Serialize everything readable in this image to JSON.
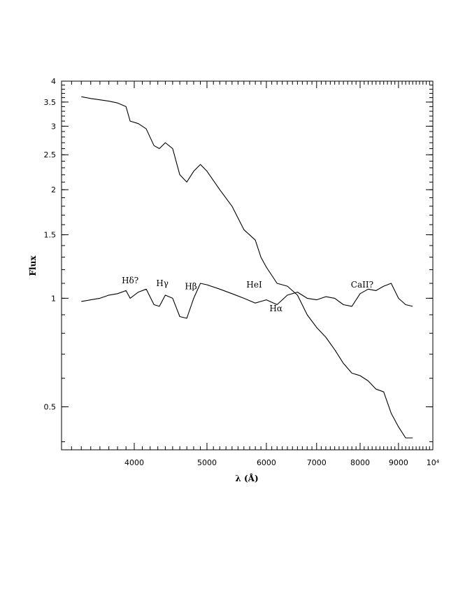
{
  "chart_data": {
    "type": "line",
    "xlabel": "λ (Å)",
    "ylabel": "Flux",
    "x_scale": "log",
    "y_scale": "log",
    "xlim": [
      3200,
      10000
    ],
    "ylim": [
      0.38,
      4.0
    ],
    "x_ticks": [
      {
        "value": 4000,
        "label": "4000"
      },
      {
        "value": 5000,
        "label": "5000"
      },
      {
        "value": 6000,
        "label": "6000"
      },
      {
        "value": 7000,
        "label": "7000"
      },
      {
        "value": 8000,
        "label": "8000"
      },
      {
        "value": 9000,
        "label": "9000"
      },
      {
        "value": 10000,
        "label": "10⁴"
      }
    ],
    "y_ticks": [
      {
        "value": 4,
        "label": "4"
      },
      {
        "value": 3.5,
        "label": "3.5"
      },
      {
        "value": 3,
        "label": "3"
      },
      {
        "value": 2.5,
        "label": "2.5"
      },
      {
        "value": 2,
        "label": "2"
      },
      {
        "value": 1.5,
        "label": "1.5"
      },
      {
        "value": 1,
        "label": "1"
      },
      {
        "value": 0.5,
        "label": "0.5"
      }
    ],
    "grid": false,
    "series": [
      {
        "x": [
          3400,
          3500,
          3600,
          3700,
          3800,
          3900,
          3950,
          4050,
          4150,
          4250,
          4320,
          4400,
          4500,
          4600,
          4700,
          4800,
          4900,
          5000,
          5200,
          5400,
          5600,
          5800,
          5900,
          6000,
          6200,
          6400,
          6600,
          6800,
          7000,
          7200,
          7400,
          7600,
          7800,
          8000,
          8200,
          8400,
          8600,
          8800,
          9000,
          9200,
          9400
        ],
        "y": [
          3.62,
          3.58,
          3.55,
          3.52,
          3.48,
          3.4,
          3.1,
          3.05,
          2.95,
          2.65,
          2.6,
          2.7,
          2.6,
          2.2,
          2.1,
          2.25,
          2.35,
          2.25,
          2.0,
          1.8,
          1.55,
          1.45,
          1.3,
          1.22,
          1.1,
          1.08,
          1.02,
          0.9,
          0.83,
          0.78,
          0.72,
          0.66,
          0.62,
          0.61,
          0.59,
          0.56,
          0.55,
          0.48,
          0.44,
          0.41,
          0.41
        ]
      },
      {
        "x": [
          3400,
          3500,
          3600,
          3700,
          3800,
          3900,
          3950,
          4050,
          4150,
          4250,
          4320,
          4400,
          4500,
          4600,
          4700,
          4800,
          4900,
          5000,
          5200,
          5400,
          5600,
          5800,
          5900,
          6000,
          6200,
          6400,
          6600,
          6800,
          7000,
          7200,
          7400,
          7600,
          7800,
          8000,
          8200,
          8400,
          8600,
          8800,
          9000,
          9200,
          9400
        ],
        "y": [
          0.98,
          0.99,
          1.0,
          1.02,
          1.03,
          1.05,
          1.0,
          1.04,
          1.06,
          0.96,
          0.95,
          1.02,
          1.0,
          0.89,
          0.88,
          1.0,
          1.1,
          1.09,
          1.06,
          1.03,
          1.0,
          0.97,
          0.98,
          0.99,
          0.96,
          1.02,
          1.04,
          1.0,
          0.99,
          1.01,
          1.0,
          0.96,
          0.95,
          1.03,
          1.06,
          1.05,
          1.08,
          1.1,
          1.0,
          0.96,
          0.95
        ]
      }
    ],
    "annotations": [
      {
        "text": "Hδ?",
        "x": 3950,
        "y": 1.1
      },
      {
        "text": "Hγ",
        "x": 4360,
        "y": 1.08
      },
      {
        "text": "Hβ",
        "x": 4760,
        "y": 1.06
      },
      {
        "text": "HeI",
        "x": 5780,
        "y": 1.07
      },
      {
        "text": "Hα",
        "x": 6180,
        "y": 0.92
      },
      {
        "text": "CaII?",
        "x": 8050,
        "y": 1.07
      }
    ]
  }
}
